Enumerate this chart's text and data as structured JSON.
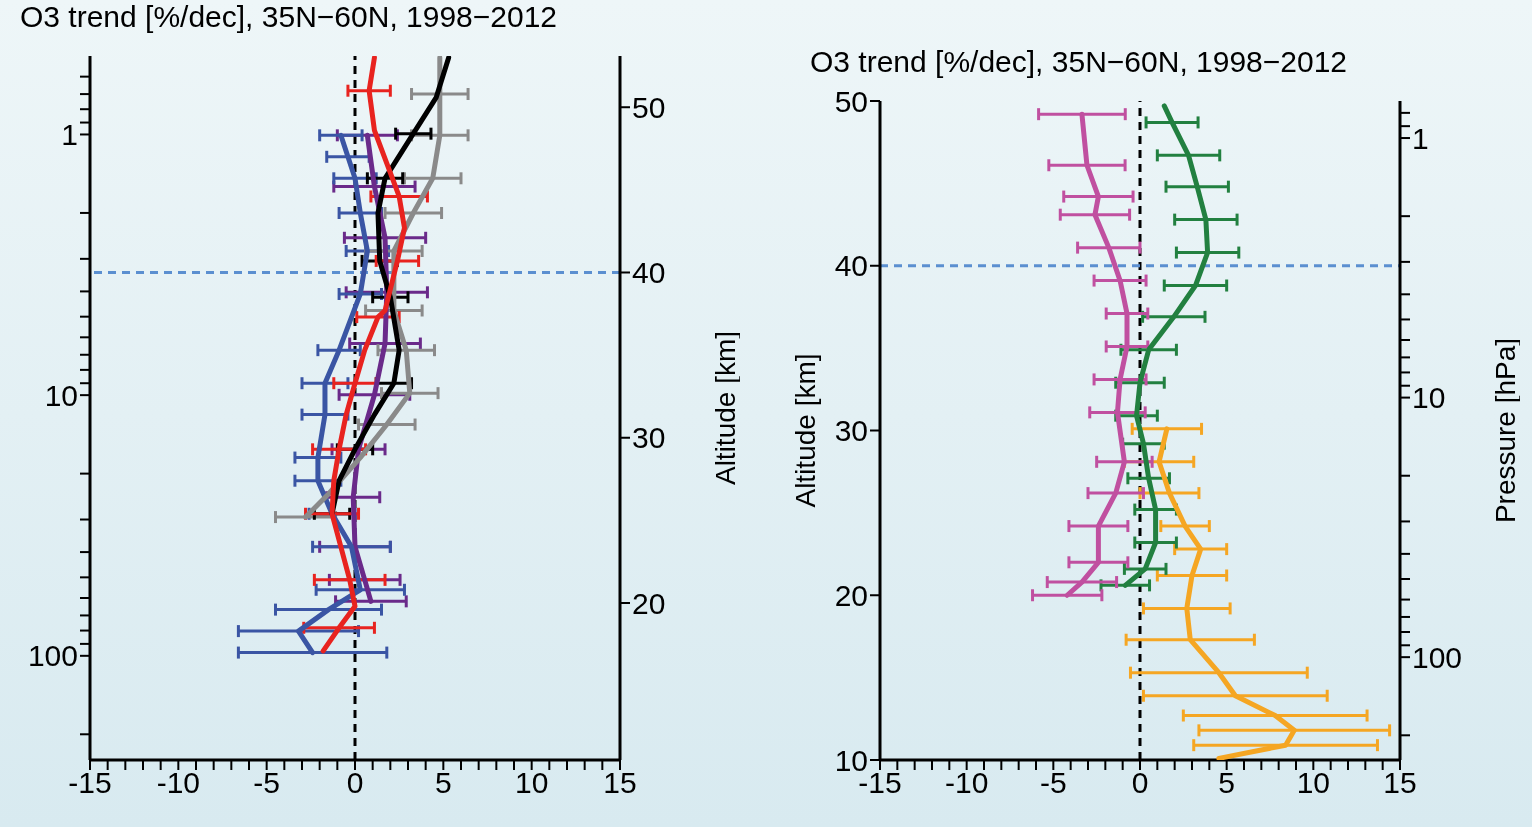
{
  "chart_data": [
    {
      "type": "line",
      "title": "O3 trend [%/dec], 35N−60N, 1998−2012",
      "y2label": "Altitude [km]",
      "marker": "none",
      "line_style": "solid",
      "grid": false,
      "legend": false,
      "log": "y",
      "xlim": [
        -15,
        15
      ],
      "xticks": [
        -15,
        {
          "value": -14,
          "label": null
        },
        {
          "value": -13,
          "label": null
        },
        {
          "value": -12,
          "label": null
        },
        {
          "value": -11,
          "label": null
        },
        -10,
        {
          "value": -9,
          "label": null
        },
        {
          "value": -8,
          "label": null
        },
        {
          "value": -7,
          "label": null
        },
        {
          "value": -6,
          "label": null
        },
        -5,
        {
          "value": -4,
          "label": null
        },
        {
          "value": -3,
          "label": null
        },
        {
          "value": -2,
          "label": null
        },
        {
          "value": -1,
          "label": null
        },
        0,
        {
          "value": 1,
          "label": null
        },
        {
          "value": 2,
          "label": null
        },
        {
          "value": 3,
          "label": null
        },
        {
          "value": 4,
          "label": null
        },
        5,
        {
          "value": 6,
          "label": null
        },
        {
          "value": 7,
          "label": null
        },
        {
          "value": 8,
          "label": null
        },
        {
          "value": 9,
          "label": null
        },
        10,
        {
          "value": 11,
          "label": null
        },
        {
          "value": 12,
          "label": null
        },
        {
          "value": 13,
          "label": null
        },
        {
          "value": 14,
          "label": null
        },
        15
      ],
      "ylim": [
        251,
        0.5
      ],
      "yticks": [
        {
          "value": 0.6,
          "label": null
        },
        {
          "value": 0.7,
          "label": null
        },
        {
          "value": 0.8,
          "label": null
        },
        {
          "value": 0.9,
          "label": null
        },
        1,
        {
          "value": 2,
          "label": null
        },
        {
          "value": 3,
          "label": null
        },
        {
          "value": 4,
          "label": null
        },
        {
          "value": 5,
          "label": null
        },
        {
          "value": 6,
          "label": null
        },
        {
          "value": 7,
          "label": null
        },
        {
          "value": 8,
          "label": null
        },
        {
          "value": 9,
          "label": null
        },
        10,
        {
          "value": 20,
          "label": null
        },
        {
          "value": 30,
          "label": null
        },
        {
          "value": 40,
          "label": null
        },
        {
          "value": 50,
          "label": null
        },
        {
          "value": 60,
          "label": null
        },
        {
          "value": 70,
          "label": null
        },
        {
          "value": 80,
          "label": null
        },
        {
          "value": 90,
          "label": null
        },
        100,
        {
          "value": 200,
          "label": null
        }
      ],
      "y2lim": [
        10.5,
        53.1
      ],
      "y2ticks": [
        20,
        30,
        40,
        50
      ],
      "ref_lines": [
        {
          "axis": "x",
          "value": 0,
          "color": "#000000",
          "line_style": "dashed"
        },
        {
          "axis": "y2",
          "value": 40,
          "color": "#5b8fd0",
          "line_style": "dashed"
        }
      ],
      "series": [
        {
          "color": "#e8231f",
          "axis": "y2",
          "x": [
            1.1,
            0.8,
            1.1,
            1.8,
            2.5,
            2.8,
            2.4,
            1.7,
            1.3,
            0.55,
            0,
            -0.5,
            -0.9,
            -1.2,
            -1.3,
            -0.8,
            -0.3,
            0,
            -0.9,
            -1.8
          ],
          "values": [
            53,
            51,
            48.6,
            46.6,
            44.6,
            42.7,
            40.7,
            37.7,
            37.3,
            35.3,
            33.3,
            31.4,
            29.3,
            27.4,
            25.4,
            23.4,
            21.4,
            19.8,
            18.5,
            17.1
          ],
          "xerrors": [
            null,
            1.2,
            null,
            null,
            1.6,
            null,
            1.2,
            null,
            1.2,
            null,
            1.2,
            null,
            1.5,
            null,
            1.5,
            null,
            2,
            null,
            2,
            null
          ]
        },
        {
          "color": "#000000",
          "axis": "y2",
          "x": [
            5.3,
            4.6,
            3.3,
            1.7,
            1.3,
            1.4,
            2,
            2.5,
            2.2,
            1.1,
            0,
            -0.9,
            -1.3
          ],
          "values": [
            53,
            50.6,
            48.4,
            45.7,
            43.6,
            40.7,
            38.5,
            35.3,
            33.3,
            31.4,
            29.3,
            27.4,
            25.4
          ],
          "xerrors": [
            null,
            null,
            1,
            1,
            null,
            1,
            1,
            null,
            1,
            null,
            1,
            null,
            1
          ]
        },
        {
          "color": "#8a8a8a",
          "axis": "y2",
          "x": [
            4.8,
            4.8,
            4.8,
            4.4,
            3.3,
            2.2,
            2.2,
            2.9,
            3.1,
            1.8,
            0.3,
            -1.5,
            -2.8
          ],
          "values": [
            53,
            50.8,
            48.3,
            45.7,
            43.6,
            41.3,
            37.7,
            35.3,
            32.7,
            30.8,
            28.8,
            26.6,
            25.2
          ],
          "xerrors": [
            null,
            1.6,
            1.6,
            1.6,
            1.6,
            1.6,
            1.6,
            1.6,
            1.6,
            1.6,
            null,
            null,
            1.7
          ]
        },
        {
          "color": "#3a55a4",
          "axis": "y2",
          "x": [
            -0.8,
            -0.4,
            0,
            0.3,
            0.7,
            0.3,
            -0.9,
            -1.7,
            -1.7,
            -2.1,
            -2.1,
            -1.3,
            -0.2,
            0.3,
            -1.5,
            -3.2,
            -2.4
          ],
          "values": [
            48.3,
            47,
            45.7,
            43.6,
            41.3,
            38.7,
            35.3,
            33.3,
            31.4,
            28.8,
            27.4,
            25.4,
            23.4,
            20.8,
            19.6,
            18.3,
            17
          ],
          "xerrors": [
            1.2,
            1.2,
            1.2,
            1.2,
            1.2,
            1.2,
            1.2,
            1.3,
            1.3,
            1.3,
            1.3,
            1.3,
            2.2,
            2.5,
            3,
            3.4,
            4.2
          ]
        },
        {
          "color": "#6a2a8a",
          "axis": "y2",
          "x": [
            0.7,
            1.1,
            1.7,
            1.8,
            1.7,
            1.1,
            0.2,
            -0.1,
            0,
            0.55,
            0.9
          ],
          "values": [
            48.3,
            45.2,
            42.1,
            38.8,
            35.7,
            32.6,
            29.3,
            26.4,
            23.4,
            21.4,
            20.1
          ],
          "xerrors": [
            1.7,
            2.3,
            2.3,
            2.3,
            2,
            2,
            1.5,
            1.5,
            2,
            2,
            2
          ]
        }
      ]
    },
    {
      "type": "line",
      "title": "O3 trend [%/dec], 35N−60N, 1998−2012",
      "ylabel": "Altitude [km]",
      "y2label": "Pressure [hPa]",
      "marker": "none",
      "line_style": "solid",
      "grid": false,
      "legend": false,
      "log": "y2",
      "xlim": [
        -15,
        15
      ],
      "xticks": [
        -15,
        {
          "value": -14,
          "label": null
        },
        {
          "value": -13,
          "label": null
        },
        {
          "value": -12,
          "label": null
        },
        {
          "value": -11,
          "label": null
        },
        -10,
        {
          "value": -9,
          "label": null
        },
        {
          "value": -8,
          "label": null
        },
        {
          "value": -7,
          "label": null
        },
        {
          "value": -6,
          "label": null
        },
        -5,
        {
          "value": -4,
          "label": null
        },
        {
          "value": -3,
          "label": null
        },
        {
          "value": -2,
          "label": null
        },
        {
          "value": -1,
          "label": null
        },
        0,
        {
          "value": 1,
          "label": null
        },
        {
          "value": 2,
          "label": null
        },
        {
          "value": 3,
          "label": null
        },
        {
          "value": 4,
          "label": null
        },
        5,
        {
          "value": 6,
          "label": null
        },
        {
          "value": 7,
          "label": null
        },
        {
          "value": 8,
          "label": null
        },
        {
          "value": 9,
          "label": null
        },
        10,
        {
          "value": 11,
          "label": null
        },
        {
          "value": 12,
          "label": null
        },
        {
          "value": 13,
          "label": null
        },
        {
          "value": 14,
          "label": null
        },
        15
      ],
      "ylim": [
        10,
        50
      ],
      "yticks": [
        10,
        20,
        30,
        40,
        50
      ],
      "y2lim": [
        249,
        0.72
      ],
      "y2ticks": [
        {
          "value": 0.8,
          "label": null
        },
        {
          "value": 0.9,
          "label": null
        },
        1,
        {
          "value": 2,
          "label": null
        },
        {
          "value": 3,
          "label": null
        },
        {
          "value": 4,
          "label": null
        },
        {
          "value": 5,
          "label": null
        },
        {
          "value": 6,
          "label": null
        },
        {
          "value": 7,
          "label": null
        },
        {
          "value": 8,
          "label": null
        },
        {
          "value": 9,
          "label": null
        },
        10,
        {
          "value": 20,
          "label": null
        },
        {
          "value": 30,
          "label": null
        },
        {
          "value": 40,
          "label": null
        },
        {
          "value": 50,
          "label": null
        },
        {
          "value": 60,
          "label": null
        },
        {
          "value": 70,
          "label": null
        },
        {
          "value": 80,
          "label": null
        },
        {
          "value": 90,
          "label": null
        },
        100,
        {
          "value": 200,
          "label": null
        }
      ],
      "ref_lines": [
        {
          "axis": "x",
          "value": 0,
          "color": "#000000",
          "line_style": "dashed"
        },
        {
          "axis": "y",
          "value": 40,
          "color": "#5b8fd0",
          "line_style": "dashed"
        }
      ],
      "series": [
        {
          "color": "#c050a0",
          "x": [
            -3.35,
            -3.06,
            -2.4,
            -2.6,
            -1.8,
            -1.15,
            -0.75,
            -0.75,
            -1.15,
            -1.3,
            -0.9,
            -1.4,
            -2.4,
            -2.4,
            -3.35,
            -4.2
          ],
          "values": [
            49.2,
            46.1,
            44.2,
            43.1,
            41.1,
            39.1,
            37.1,
            35.1,
            33.1,
            31.1,
            28.1,
            26.2,
            24.2,
            22,
            20.8,
            20
          ],
          "xerrors": [
            2.5,
            2.2,
            2,
            2,
            1.8,
            1.5,
            1.2,
            1.2,
            1.5,
            1.6,
            1.6,
            1.6,
            1.7,
            1.7,
            2,
            2
          ]
        },
        {
          "color": "#228040",
          "x": [
            1.4,
            1.85,
            2.8,
            3.3,
            3.8,
            3.9,
            3.2,
            1.95,
            0.5,
            0,
            -0.2,
            0.2,
            0.5,
            0.9,
            0.9,
            0.3,
            -0.85
          ],
          "values": [
            49.7,
            48.7,
            46.7,
            44.8,
            42.8,
            40.8,
            38.8,
            36.9,
            34.9,
            32.9,
            30.9,
            29.2,
            27.1,
            25.2,
            23.2,
            21.6,
            20.6
          ],
          "xerrors": [
            null,
            1.5,
            1.8,
            1.8,
            1.8,
            1.8,
            1.8,
            1.8,
            1.6,
            1.4,
            1.2,
            1.2,
            1.2,
            1.2,
            1.2,
            1.2,
            1.4
          ]
        },
        {
          "color": "#f5a623",
          "x": [
            1.55,
            1.1,
            1.7,
            2.6,
            3.5,
            3,
            2.7,
            2.9,
            4.55,
            5.5,
            7.8,
            8.9,
            8.4,
            4.55
          ],
          "values": [
            30.1,
            28.1,
            26.2,
            24.2,
            22.8,
            21.2,
            19.2,
            17.3,
            15.3,
            13.9,
            12.7,
            11.8,
            10.9,
            10.1
          ],
          "xerrors": [
            2,
            2,
            1.7,
            1.4,
            1.5,
            2,
            2.5,
            3.7,
            5.1,
            5.3,
            5.3,
            5.5,
            5.3,
            null
          ]
        }
      ]
    }
  ]
}
